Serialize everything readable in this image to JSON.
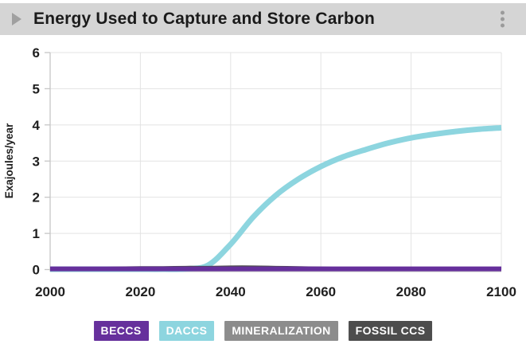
{
  "header": {
    "title": "Energy Used to Capture and Store Carbon"
  },
  "colors": {
    "header_bg": "#d5d5d5",
    "title_text": "#1a1a1a",
    "axis": "#c6c6c6",
    "grid": "#e3e3e3",
    "tick_label": "#1f1f1f",
    "header_icon": "#9e9e9e",
    "plot_bg": "#ffffff"
  },
  "chart_data": {
    "type": "line",
    "title": "Energy Used to Capture and Store Carbon",
    "xlabel": "",
    "ylabel": "Exajoules/year",
    "xlim": [
      2000,
      2100
    ],
    "ylim": [
      0,
      6
    ],
    "x_ticks": [
      2000,
      2020,
      2040,
      2060,
      2080,
      2100
    ],
    "y_ticks": [
      0,
      1,
      2,
      3,
      4,
      5,
      6
    ],
    "grid": true,
    "legend_position": "bottom",
    "x": [
      2000,
      2005,
      2010,
      2015,
      2020,
      2025,
      2030,
      2035,
      2040,
      2045,
      2050,
      2055,
      2060,
      2065,
      2070,
      2075,
      2080,
      2085,
      2090,
      2095,
      2100
    ],
    "draw_order": [
      "DACCS",
      "MINERALIZATION",
      "FOSSIL CCS",
      "BECCS"
    ],
    "series": [
      {
        "name": "BECCS",
        "color": "#66309c",
        "width": 6,
        "values": [
          0.02,
          0.02,
          0.02,
          0.02,
          0.02,
          0.02,
          0.02,
          0.02,
          0.02,
          0.02,
          0.02,
          0.02,
          0.02,
          0.02,
          0.02,
          0.02,
          0.02,
          0.02,
          0.02,
          0.02,
          0.02
        ]
      },
      {
        "name": "DACCS",
        "color": "#8dd5df",
        "width": 7,
        "values": [
          0.01,
          0.01,
          0.01,
          0.01,
          0.01,
          0.01,
          0.02,
          0.12,
          0.7,
          1.45,
          2.05,
          2.5,
          2.85,
          3.12,
          3.32,
          3.5,
          3.64,
          3.74,
          3.82,
          3.88,
          3.92
        ]
      },
      {
        "name": "MINERALIZATION",
        "color": "#8c8c8c",
        "width": 3,
        "values": [
          0.03,
          0.04,
          0.04,
          0.05,
          0.05,
          0.05,
          0.05,
          0.06,
          0.06,
          0.06,
          0.05,
          0.05,
          0.04,
          0.03,
          0.03,
          0.02,
          0.02,
          0.02,
          0.02,
          0.02,
          0.02
        ]
      },
      {
        "name": "FOSSIL CCS",
        "color": "#4d4d4d",
        "width": 3,
        "values": [
          0.02,
          0.03,
          0.04,
          0.05,
          0.06,
          0.06,
          0.07,
          0.07,
          0.08,
          0.08,
          0.07,
          0.06,
          0.05,
          0.04,
          0.03,
          0.02,
          0.02,
          0.02,
          0.02,
          0.02,
          0.02
        ]
      }
    ]
  }
}
